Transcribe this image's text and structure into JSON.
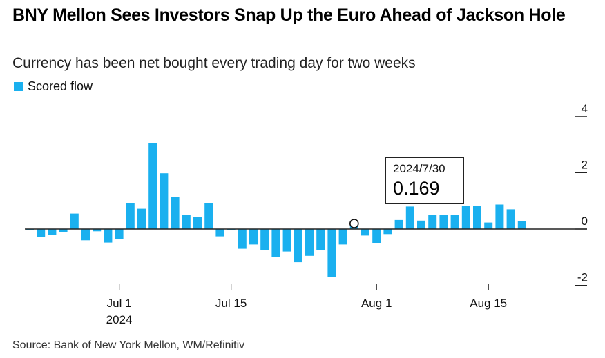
{
  "header": {
    "title": "BNY Mellon Sees Investors Snap Up the Euro Ahead of Jackson Hole",
    "subtitle": "Currency has been net bought every trading day for two weeks"
  },
  "legend": {
    "label": "Scored flow",
    "color": "#1ab0ef"
  },
  "tooltip": {
    "date": "2024/7/30",
    "value": "0.169"
  },
  "footer": {
    "source": "Source: Bank of New York Mellon, WM/Refinitiv"
  },
  "chart_data": {
    "type": "bar",
    "series": [
      {
        "name": "Scored flow",
        "color": "#1ab0ef",
        "values": [
          {
            "date": "2024-06-19",
            "value": -0.05
          },
          {
            "date": "2024-06-20",
            "value": -0.28
          },
          {
            "date": "2024-06-21",
            "value": -0.2
          },
          {
            "date": "2024-06-24",
            "value": -0.12
          },
          {
            "date": "2024-06-25",
            "value": 0.55
          },
          {
            "date": "2024-06-26",
            "value": -0.4
          },
          {
            "date": "2024-06-27",
            "value": -0.08
          },
          {
            "date": "2024-06-28",
            "value": -0.48
          },
          {
            "date": "2024-07-01",
            "value": -0.36
          },
          {
            "date": "2024-07-02",
            "value": 0.93
          },
          {
            "date": "2024-07-03",
            "value": 0.72
          },
          {
            "date": "2024-07-04",
            "value": 3.05
          },
          {
            "date": "2024-07-05",
            "value": 1.98
          },
          {
            "date": "2024-07-08",
            "value": 1.13
          },
          {
            "date": "2024-07-09",
            "value": 0.5
          },
          {
            "date": "2024-07-10",
            "value": 0.42
          },
          {
            "date": "2024-07-11",
            "value": 0.92
          },
          {
            "date": "2024-07-12",
            "value": -0.26
          },
          {
            "date": "2024-07-15",
            "value": -0.05
          },
          {
            "date": "2024-07-16",
            "value": -0.7
          },
          {
            "date": "2024-07-17",
            "value": -0.55
          },
          {
            "date": "2024-07-18",
            "value": -0.75
          },
          {
            "date": "2024-07-19",
            "value": -1.0
          },
          {
            "date": "2024-07-22",
            "value": -0.8
          },
          {
            "date": "2024-07-23",
            "value": -1.18
          },
          {
            "date": "2024-07-24",
            "value": -0.95
          },
          {
            "date": "2024-07-25",
            "value": -0.75
          },
          {
            "date": "2024-07-26",
            "value": -1.7
          },
          {
            "date": "2024-07-29",
            "value": -0.55
          },
          {
            "date": "2024-07-30",
            "value": 0.169
          },
          {
            "date": "2024-07-31",
            "value": -0.23
          },
          {
            "date": "2024-08-01",
            "value": -0.5
          },
          {
            "date": "2024-08-02",
            "value": -0.18
          },
          {
            "date": "2024-08-05",
            "value": 0.32
          },
          {
            "date": "2024-08-06",
            "value": 0.8
          },
          {
            "date": "2024-08-07",
            "value": 0.3
          },
          {
            "date": "2024-08-08",
            "value": 0.5
          },
          {
            "date": "2024-08-09",
            "value": 0.5
          },
          {
            "date": "2024-08-12",
            "value": 0.5
          },
          {
            "date": "2024-08-13",
            "value": 0.82
          },
          {
            "date": "2024-08-14",
            "value": 0.82
          },
          {
            "date": "2024-08-15",
            "value": 0.23
          },
          {
            "date": "2024-08-16",
            "value": 0.87
          },
          {
            "date": "2024-08-19",
            "value": 0.7
          },
          {
            "date": "2024-08-20",
            "value": 0.28
          }
        ]
      }
    ],
    "title": "BNY Mellon Sees Investors Snap Up the Euro Ahead of Jackson Hole",
    "subtitle": "Currency has been net bought every trading day for two weeks",
    "xlabel": "",
    "ylabel": "",
    "ylim": [
      -2,
      4
    ],
    "yticks": [
      "4",
      "2",
      "0",
      "-2"
    ],
    "xticks": [
      {
        "date": "2024-07-01",
        "label": "Jul 1",
        "sublabel": "2024"
      },
      {
        "date": "2024-07-15",
        "label": "Jul 15",
        "sublabel": ""
      },
      {
        "date": "2024-08-01",
        "label": "Aug 1",
        "sublabel": ""
      },
      {
        "date": "2024-08-15",
        "label": "Aug 15",
        "sublabel": ""
      }
    ],
    "grid": false,
    "legend_position": "top-left",
    "y_axis_position": "right",
    "highlight_date": "2024-07-30"
  }
}
